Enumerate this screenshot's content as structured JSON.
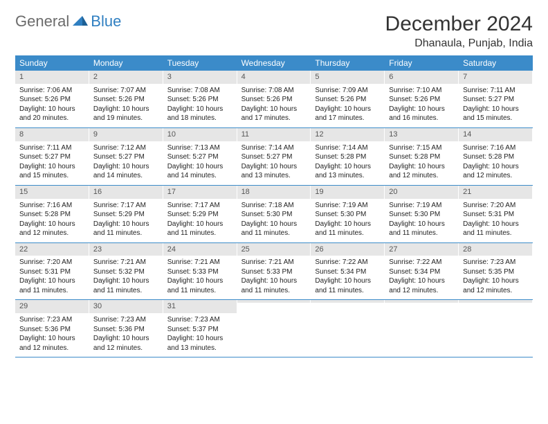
{
  "logo": {
    "part1": "General",
    "part2": "Blue"
  },
  "title": "December 2024",
  "location": "Dhanaula, Punjab, India",
  "colors": {
    "header_bg": "#3b8bc9",
    "header_text": "#ffffff",
    "daynum_bg": "#e6e6e6",
    "border": "#3b8bc9",
    "logo_gray": "#6b6b6b",
    "logo_blue": "#2f7fc1"
  },
  "day_names": [
    "Sunday",
    "Monday",
    "Tuesday",
    "Wednesday",
    "Thursday",
    "Friday",
    "Saturday"
  ],
  "weeks": [
    [
      {
        "n": "1",
        "sr": "Sunrise: 7:06 AM",
        "ss": "Sunset: 5:26 PM",
        "dl": "Daylight: 10 hours and 20 minutes."
      },
      {
        "n": "2",
        "sr": "Sunrise: 7:07 AM",
        "ss": "Sunset: 5:26 PM",
        "dl": "Daylight: 10 hours and 19 minutes."
      },
      {
        "n": "3",
        "sr": "Sunrise: 7:08 AM",
        "ss": "Sunset: 5:26 PM",
        "dl": "Daylight: 10 hours and 18 minutes."
      },
      {
        "n": "4",
        "sr": "Sunrise: 7:08 AM",
        "ss": "Sunset: 5:26 PM",
        "dl": "Daylight: 10 hours and 17 minutes."
      },
      {
        "n": "5",
        "sr": "Sunrise: 7:09 AM",
        "ss": "Sunset: 5:26 PM",
        "dl": "Daylight: 10 hours and 17 minutes."
      },
      {
        "n": "6",
        "sr": "Sunrise: 7:10 AM",
        "ss": "Sunset: 5:26 PM",
        "dl": "Daylight: 10 hours and 16 minutes."
      },
      {
        "n": "7",
        "sr": "Sunrise: 7:11 AM",
        "ss": "Sunset: 5:27 PM",
        "dl": "Daylight: 10 hours and 15 minutes."
      }
    ],
    [
      {
        "n": "8",
        "sr": "Sunrise: 7:11 AM",
        "ss": "Sunset: 5:27 PM",
        "dl": "Daylight: 10 hours and 15 minutes."
      },
      {
        "n": "9",
        "sr": "Sunrise: 7:12 AM",
        "ss": "Sunset: 5:27 PM",
        "dl": "Daylight: 10 hours and 14 minutes."
      },
      {
        "n": "10",
        "sr": "Sunrise: 7:13 AM",
        "ss": "Sunset: 5:27 PM",
        "dl": "Daylight: 10 hours and 14 minutes."
      },
      {
        "n": "11",
        "sr": "Sunrise: 7:14 AM",
        "ss": "Sunset: 5:27 PM",
        "dl": "Daylight: 10 hours and 13 minutes."
      },
      {
        "n": "12",
        "sr": "Sunrise: 7:14 AM",
        "ss": "Sunset: 5:28 PM",
        "dl": "Daylight: 10 hours and 13 minutes."
      },
      {
        "n": "13",
        "sr": "Sunrise: 7:15 AM",
        "ss": "Sunset: 5:28 PM",
        "dl": "Daylight: 10 hours and 12 minutes."
      },
      {
        "n": "14",
        "sr": "Sunrise: 7:16 AM",
        "ss": "Sunset: 5:28 PM",
        "dl": "Daylight: 10 hours and 12 minutes."
      }
    ],
    [
      {
        "n": "15",
        "sr": "Sunrise: 7:16 AM",
        "ss": "Sunset: 5:28 PM",
        "dl": "Daylight: 10 hours and 12 minutes."
      },
      {
        "n": "16",
        "sr": "Sunrise: 7:17 AM",
        "ss": "Sunset: 5:29 PM",
        "dl": "Daylight: 10 hours and 11 minutes."
      },
      {
        "n": "17",
        "sr": "Sunrise: 7:17 AM",
        "ss": "Sunset: 5:29 PM",
        "dl": "Daylight: 10 hours and 11 minutes."
      },
      {
        "n": "18",
        "sr": "Sunrise: 7:18 AM",
        "ss": "Sunset: 5:30 PM",
        "dl": "Daylight: 10 hours and 11 minutes."
      },
      {
        "n": "19",
        "sr": "Sunrise: 7:19 AM",
        "ss": "Sunset: 5:30 PM",
        "dl": "Daylight: 10 hours and 11 minutes."
      },
      {
        "n": "20",
        "sr": "Sunrise: 7:19 AM",
        "ss": "Sunset: 5:30 PM",
        "dl": "Daylight: 10 hours and 11 minutes."
      },
      {
        "n": "21",
        "sr": "Sunrise: 7:20 AM",
        "ss": "Sunset: 5:31 PM",
        "dl": "Daylight: 10 hours and 11 minutes."
      }
    ],
    [
      {
        "n": "22",
        "sr": "Sunrise: 7:20 AM",
        "ss": "Sunset: 5:31 PM",
        "dl": "Daylight: 10 hours and 11 minutes."
      },
      {
        "n": "23",
        "sr": "Sunrise: 7:21 AM",
        "ss": "Sunset: 5:32 PM",
        "dl": "Daylight: 10 hours and 11 minutes."
      },
      {
        "n": "24",
        "sr": "Sunrise: 7:21 AM",
        "ss": "Sunset: 5:33 PM",
        "dl": "Daylight: 10 hours and 11 minutes."
      },
      {
        "n": "25",
        "sr": "Sunrise: 7:21 AM",
        "ss": "Sunset: 5:33 PM",
        "dl": "Daylight: 10 hours and 11 minutes."
      },
      {
        "n": "26",
        "sr": "Sunrise: 7:22 AM",
        "ss": "Sunset: 5:34 PM",
        "dl": "Daylight: 10 hours and 11 minutes."
      },
      {
        "n": "27",
        "sr": "Sunrise: 7:22 AM",
        "ss": "Sunset: 5:34 PM",
        "dl": "Daylight: 10 hours and 12 minutes."
      },
      {
        "n": "28",
        "sr": "Sunrise: 7:23 AM",
        "ss": "Sunset: 5:35 PM",
        "dl": "Daylight: 10 hours and 12 minutes."
      }
    ],
    [
      {
        "n": "29",
        "sr": "Sunrise: 7:23 AM",
        "ss": "Sunset: 5:36 PM",
        "dl": "Daylight: 10 hours and 12 minutes."
      },
      {
        "n": "30",
        "sr": "Sunrise: 7:23 AM",
        "ss": "Sunset: 5:36 PM",
        "dl": "Daylight: 10 hours and 12 minutes."
      },
      {
        "n": "31",
        "sr": "Sunrise: 7:23 AM",
        "ss": "Sunset: 5:37 PM",
        "dl": "Daylight: 10 hours and 13 minutes."
      },
      {
        "n": "",
        "sr": "",
        "ss": "",
        "dl": ""
      },
      {
        "n": "",
        "sr": "",
        "ss": "",
        "dl": ""
      },
      {
        "n": "",
        "sr": "",
        "ss": "",
        "dl": ""
      },
      {
        "n": "",
        "sr": "",
        "ss": "",
        "dl": ""
      }
    ]
  ]
}
